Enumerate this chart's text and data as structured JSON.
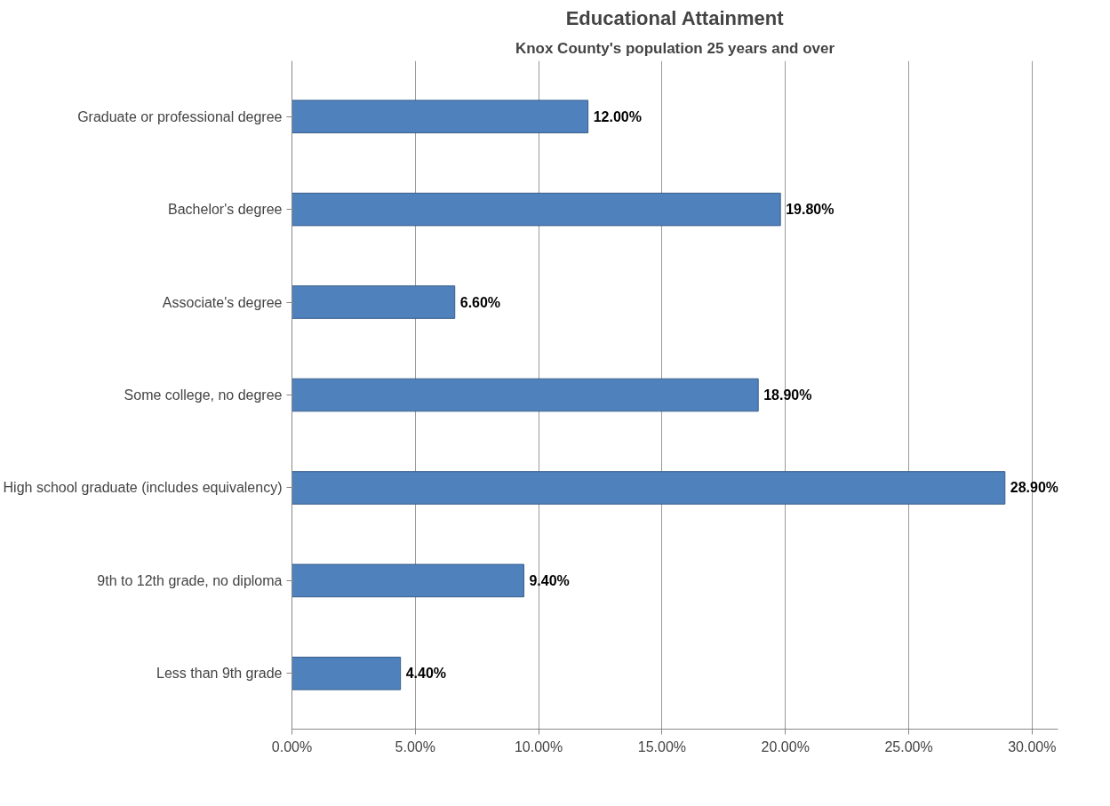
{
  "chart_data": {
    "type": "bar",
    "orientation": "horizontal",
    "title": "Educational Attainment",
    "subtitle": "Knox County's population 25 years and over",
    "categories": [
      "Graduate or professional degree",
      "Bachelor's degree",
      "Associate's degree",
      "Some college, no degree",
      "High school graduate (includes equivalency)",
      "9th to 12th grade, no diploma",
      "Less than 9th grade"
    ],
    "values": [
      12.0,
      19.8,
      6.6,
      18.9,
      28.9,
      9.4,
      4.4
    ],
    "value_labels": [
      "12.00%",
      "19.80%",
      "6.60%",
      "18.90%",
      "28.90%",
      "9.40%",
      "4.40%"
    ],
    "color": "#4f81bd",
    "xlim": [
      0,
      30
    ],
    "xticks": [
      {
        "value": 0,
        "label": "0.00%"
      },
      {
        "value": 5,
        "label": "5.00%"
      },
      {
        "value": 10,
        "label": "10.00%"
      },
      {
        "value": 15,
        "label": "15.00%"
      },
      {
        "value": 20,
        "label": "20.00%"
      },
      {
        "value": 25,
        "label": "25.00%"
      },
      {
        "value": 30,
        "label": "30.00%"
      }
    ],
    "grid": "x"
  }
}
